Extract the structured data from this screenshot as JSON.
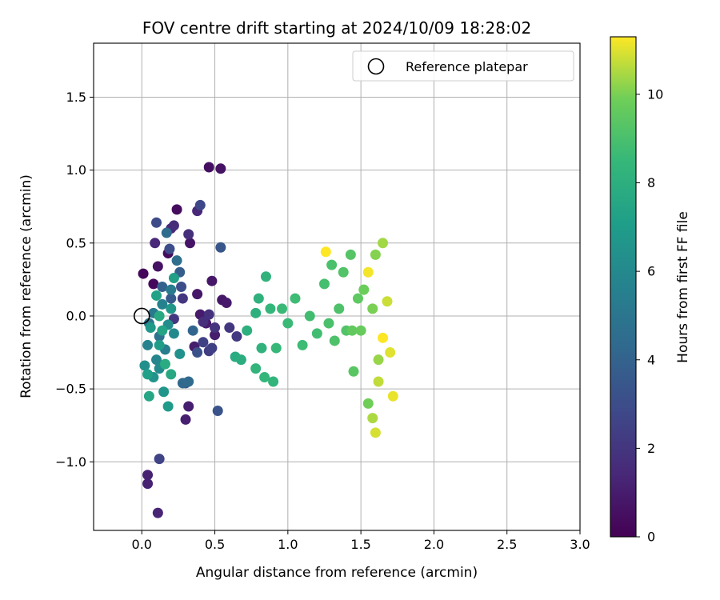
{
  "chart_data": {
    "type": "scatter",
    "title": "FOV centre drift starting at 2024/10/09 18:28:02",
    "xlabel": "Angular distance from reference (arcmin)",
    "ylabel": "Rotation from reference (arcmin)",
    "xlim": [
      -0.33,
      3.0
    ],
    "ylim": [
      -1.47,
      1.87
    ],
    "xticks": [
      0.0,
      0.5,
      1.0,
      1.5,
      2.0,
      2.5,
      3.0
    ],
    "xtick_labels": [
      "0.0",
      "0.5",
      "1.0",
      "1.5",
      "2.0",
      "2.5",
      "3.0"
    ],
    "yticks": [
      -1.0,
      -0.5,
      0.0,
      0.5,
      1.0,
      1.5
    ],
    "ytick_labels": [
      "−1.0",
      "−0.5",
      "0.0",
      "0.5",
      "1.0",
      "1.5"
    ],
    "grid": true,
    "legend": {
      "entries": [
        "Reference platepar"
      ],
      "placement": "upper right"
    },
    "reference_point": {
      "x": 0.0,
      "y": 0.0
    },
    "colorbar": {
      "label": "Hours from first FF file",
      "colormap": "viridis",
      "range": [
        0,
        11.3
      ],
      "ticks": [
        0,
        2,
        4,
        6,
        8,
        10
      ],
      "tick_labels": [
        "0",
        "2",
        "4",
        "6",
        "8",
        "10"
      ]
    },
    "points": [
      [
        0.01,
        0.29,
        0.2
      ],
      [
        0.08,
        0.22,
        0.3
      ],
      [
        0.18,
        0.43,
        0.4
      ],
      [
        0.24,
        0.73,
        0.4
      ],
      [
        0.46,
        1.02,
        0.5
      ],
      [
        0.54,
        1.01,
        0.6
      ],
      [
        0.11,
        0.34,
        0.6
      ],
      [
        0.33,
        0.5,
        0.7
      ],
      [
        0.38,
        0.15,
        0.8
      ],
      [
        0.48,
        0.24,
        0.8
      ],
      [
        0.55,
        0.11,
        0.8
      ],
      [
        0.58,
        0.09,
        0.9
      ],
      [
        0.4,
        0.01,
        0.9
      ],
      [
        0.44,
        -0.05,
        0.9
      ],
      [
        0.5,
        -0.13,
        1.0
      ],
      [
        0.36,
        -0.21,
        1.0
      ],
      [
        0.32,
        -0.62,
        1.1
      ],
      [
        0.3,
        -0.71,
        1.1
      ],
      [
        0.04,
        -1.09,
        1.2
      ],
      [
        0.04,
        -1.15,
        1.2
      ],
      [
        0.11,
        -1.35,
        1.3
      ],
      [
        0.38,
        0.72,
        1.4
      ],
      [
        0.09,
        0.5,
        1.4
      ],
      [
        0.2,
        0.6,
        1.5
      ],
      [
        0.22,
        0.62,
        1.6
      ],
      [
        0.32,
        0.56,
        1.7
      ],
      [
        0.42,
        -0.04,
        1.7
      ],
      [
        0.46,
        0.01,
        1.8
      ],
      [
        0.5,
        -0.08,
        1.9
      ],
      [
        0.22,
        -0.02,
        2.0
      ],
      [
        0.28,
        0.12,
        2.0
      ],
      [
        0.6,
        -0.08,
        2.1
      ],
      [
        0.65,
        -0.14,
        2.2
      ],
      [
        0.46,
        -0.24,
        2.3
      ],
      [
        0.48,
        -0.22,
        2.4
      ],
      [
        0.42,
        -0.18,
        2.5
      ],
      [
        0.12,
        -0.98,
        2.6
      ],
      [
        0.4,
        0.76,
        2.8
      ],
      [
        0.1,
        0.64,
        2.9
      ],
      [
        0.19,
        0.46,
        3.0
      ],
      [
        0.27,
        0.2,
        3.0
      ],
      [
        0.38,
        -0.25,
        3.2
      ],
      [
        0.52,
        -0.65,
        3.3
      ],
      [
        0.54,
        0.47,
        3.4
      ],
      [
        0.3,
        -0.46,
        3.5
      ],
      [
        0.2,
        0.12,
        3.6
      ],
      [
        0.26,
        0.3,
        3.8
      ],
      [
        0.14,
        0.2,
        4.0
      ],
      [
        0.35,
        -0.1,
        4.1
      ],
      [
        0.28,
        -0.46,
        4.3
      ],
      [
        0.32,
        -0.45,
        4.4
      ],
      [
        0.17,
        0.57,
        4.5
      ],
      [
        0.24,
        0.38,
        4.6
      ],
      [
        0.12,
        -0.14,
        4.8
      ],
      [
        0.05,
        -0.05,
        5.0
      ],
      [
        0.08,
        0.02,
        5.1
      ],
      [
        0.2,
        0.18,
        5.2
      ],
      [
        0.16,
        -0.23,
        5.4
      ],
      [
        0.14,
        0.08,
        5.6
      ],
      [
        0.04,
        -0.2,
        5.7
      ],
      [
        0.1,
        -0.3,
        5.9
      ],
      [
        0.22,
        -0.12,
        6.0
      ],
      [
        0.12,
        -0.36,
        6.1
      ],
      [
        0.18,
        -0.06,
        6.2
      ],
      [
        0.02,
        -0.34,
        6.3
      ],
      [
        0.26,
        -0.26,
        6.4
      ],
      [
        0.08,
        -0.42,
        6.5
      ],
      [
        0.15,
        -0.52,
        6.6
      ],
      [
        0.2,
        0.05,
        6.7
      ],
      [
        0.06,
        -0.08,
        6.8
      ],
      [
        0.18,
        -0.62,
        6.9
      ],
      [
        0.12,
        -0.2,
        7.0
      ],
      [
        0.04,
        -0.4,
        7.1
      ],
      [
        0.22,
        0.26,
        7.2
      ],
      [
        0.1,
        0.14,
        7.3
      ],
      [
        0.14,
        -0.1,
        7.4
      ],
      [
        0.05,
        -0.55,
        7.5
      ],
      [
        0.2,
        -0.4,
        7.6
      ],
      [
        0.12,
        0.0,
        7.7
      ],
      [
        0.16,
        -0.33,
        7.8
      ],
      [
        0.64,
        -0.28,
        7.8
      ],
      [
        0.68,
        -0.3,
        7.9
      ],
      [
        0.72,
        -0.1,
        8.0
      ],
      [
        0.78,
        0.02,
        8.0
      ],
      [
        0.8,
        0.12,
        8.1
      ],
      [
        0.85,
        0.27,
        8.2
      ],
      [
        0.82,
        -0.22,
        8.2
      ],
      [
        0.9,
        -0.45,
        8.3
      ],
      [
        0.78,
        -0.36,
        8.3
      ],
      [
        0.84,
        -0.42,
        8.4
      ],
      [
        0.88,
        0.05,
        8.4
      ],
      [
        0.92,
        -0.22,
        8.5
      ],
      [
        0.96,
        0.05,
        8.6
      ],
      [
        1.0,
        -0.05,
        8.6
      ],
      [
        1.05,
        0.12,
        8.7
      ],
      [
        1.1,
        -0.2,
        8.7
      ],
      [
        1.15,
        0.0,
        8.8
      ],
      [
        1.2,
        -0.12,
        8.8
      ],
      [
        1.25,
        0.22,
        8.9
      ],
      [
        1.28,
        -0.05,
        9.0
      ],
      [
        1.3,
        0.35,
        9.0
      ],
      [
        1.32,
        -0.17,
        9.1
      ],
      [
        1.35,
        0.05,
        9.1
      ],
      [
        1.38,
        0.3,
        9.2
      ],
      [
        1.4,
        -0.1,
        9.2
      ],
      [
        1.43,
        0.42,
        9.3
      ],
      [
        1.45,
        -0.38,
        9.4
      ],
      [
        1.48,
        0.12,
        9.5
      ],
      [
        1.44,
        -0.1,
        9.6
      ],
      [
        1.5,
        -0.1,
        9.7
      ],
      [
        1.52,
        0.18,
        9.8
      ],
      [
        1.55,
        -0.6,
        9.9
      ],
      [
        1.58,
        0.05,
        10.0
      ],
      [
        1.6,
        0.42,
        10.1
      ],
      [
        1.62,
        -0.3,
        10.3
      ],
      [
        1.65,
        0.5,
        10.4
      ],
      [
        1.58,
        -0.7,
        10.5
      ],
      [
        1.62,
        -0.45,
        10.7
      ],
      [
        1.68,
        0.1,
        10.8
      ],
      [
        1.6,
        -0.8,
        10.9
      ],
      [
        1.7,
        -0.25,
        11.0
      ],
      [
        1.72,
        -0.55,
        11.1
      ],
      [
        1.55,
        0.3,
        11.2
      ],
      [
        1.65,
        -0.15,
        11.3
      ],
      [
        1.26,
        0.44,
        11.3
      ]
    ]
  }
}
